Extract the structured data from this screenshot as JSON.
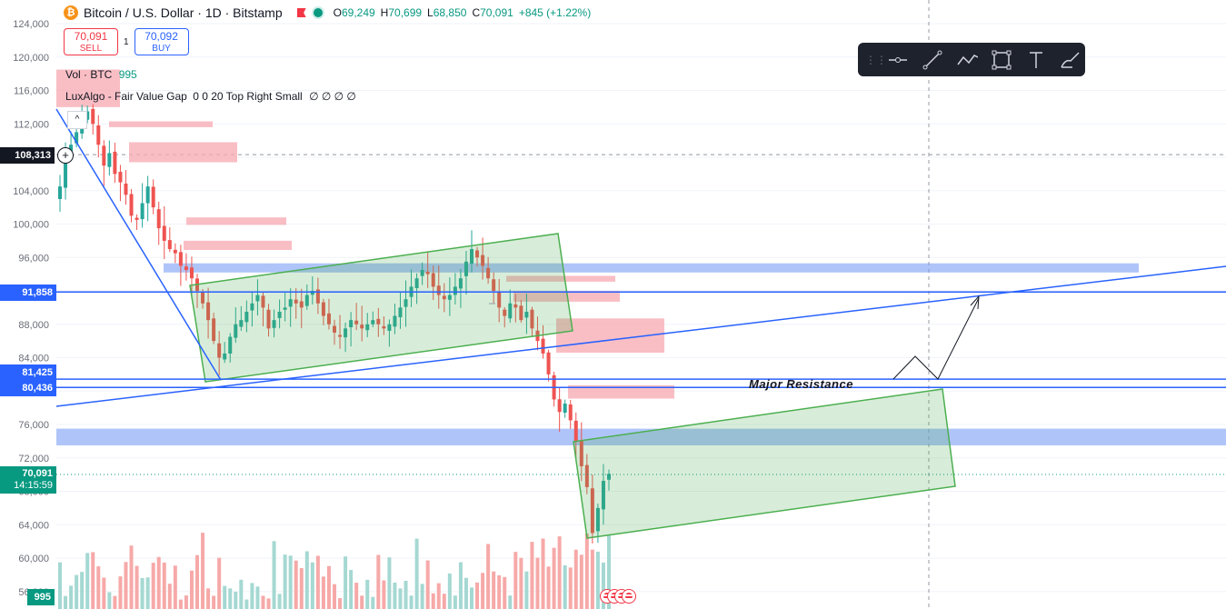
{
  "header": {
    "symbol": "Bitcoin / U.S. Dollar · 1D · Bitstamp",
    "ohlc": [
      {
        "k": "O",
        "v": "69,249"
      },
      {
        "k": "H",
        "v": "70,699"
      },
      {
        "k": "L",
        "v": "68,850"
      },
      {
        "k": "C",
        "v": "70,091"
      }
    ],
    "change": "+845 (+1.22%)",
    "logo_glyph": "₿"
  },
  "trade": {
    "sell_price": "70,091",
    "sell_label": "SELL",
    "spread": "1",
    "buy_price": "70,092",
    "buy_label": "BUY"
  },
  "indicators": {
    "vol_label": "Vol · BTC",
    "vol_value": "995",
    "fvg_label": "LuxAlgo - Fair Value Gap",
    "fvg_params": "0 0 20 Top Right Small",
    "fvg_icons": "∅ ∅ ∅ ∅"
  },
  "toolbar": [
    "grip-icon",
    "horizontal-line-icon",
    "trend-line-icon",
    "path-icon",
    "rectangle-icon",
    "text-icon",
    "brush-icon"
  ],
  "price_tags": {
    "crosshair": "108,313",
    "level1": "91,858",
    "level2": "81,425",
    "level3": "80,436",
    "last_price": "70,091",
    "countdown": "14:15:59",
    "volume": "995"
  },
  "annotation": "Major Resistance",
  "colors": {
    "up": "#26a69a",
    "down": "#ef5350",
    "fvg_bear": "#f7a8b0",
    "zone_blue": "#7a9ef5",
    "channel": "#4caf50",
    "line_blue": "#2962ff"
  },
  "chart_data": {
    "type": "candlestick",
    "y_axis": {
      "ylim": [
        56000,
        124000
      ],
      "tick_labels": [
        "124,000",
        "120,000",
        "116,000",
        "112,000",
        "108,000",
        "104,000",
        "100,000",
        "96,000",
        "92,000",
        "88,000",
        "84,000",
        "80,000",
        "76,000",
        "72,000",
        "68,000",
        "64,000",
        "60,000",
        "56,000"
      ]
    },
    "candles_close_path": [
      104500,
      108500,
      109500,
      111000,
      112500,
      113500,
      112000,
      109500,
      107000,
      108500,
      106000,
      105000,
      103500,
      101000,
      100500,
      102500,
      104500,
      102000,
      99500,
      98000,
      97000,
      96500,
      95000,
      94500,
      93500,
      92000,
      90500,
      88500,
      86000,
      84000,
      84500,
      86500,
      88000,
      88500,
      89500,
      90500,
      91500,
      90000,
      87500,
      88500,
      89500,
      90000,
      91000,
      90500,
      90000,
      91500,
      92000,
      90500,
      89000,
      88000,
      87000,
      86500,
      87500,
      88500,
      88000,
      87500,
      88000,
      88500,
      88000,
      87500,
      88000,
      89000,
      90000,
      91000,
      92500,
      93500,
      94500,
      94000,
      92500,
      91500,
      91000,
      91500,
      92500,
      93500,
      95500,
      97000,
      96000,
      95000,
      93500,
      92000,
      90000,
      89000,
      90500,
      90000,
      88500,
      89500,
      87500,
      86000,
      84500,
      82000,
      79000,
      77500,
      78500,
      76500,
      74000,
      71000,
      68500,
      63000,
      66000,
      69249,
      70091
    ],
    "volume_scale_max": 900,
    "fvg_bear_zones": [
      {
        "top": 118500,
        "bottom": 114000
      },
      {
        "top": 112300,
        "bottom": 111600
      },
      {
        "top": 109800,
        "bottom": 107400
      },
      {
        "top": 100800,
        "bottom": 99900
      },
      {
        "top": 98000,
        "bottom": 96900
      },
      {
        "top": 93800,
        "bottom": 93100
      },
      {
        "top": 92000,
        "bottom": 90700
      },
      {
        "top": 88700,
        "bottom": 84600
      },
      {
        "top": 80700,
        "bottom": 79100
      }
    ],
    "blue_zones": [
      {
        "top": 95300,
        "bottom": 94200
      },
      {
        "top": 75500,
        "bottom": 73500
      }
    ],
    "horizontal_levels": [
      91858,
      81425,
      80436
    ],
    "crosshair_price": 108313,
    "last_price": 70091
  }
}
